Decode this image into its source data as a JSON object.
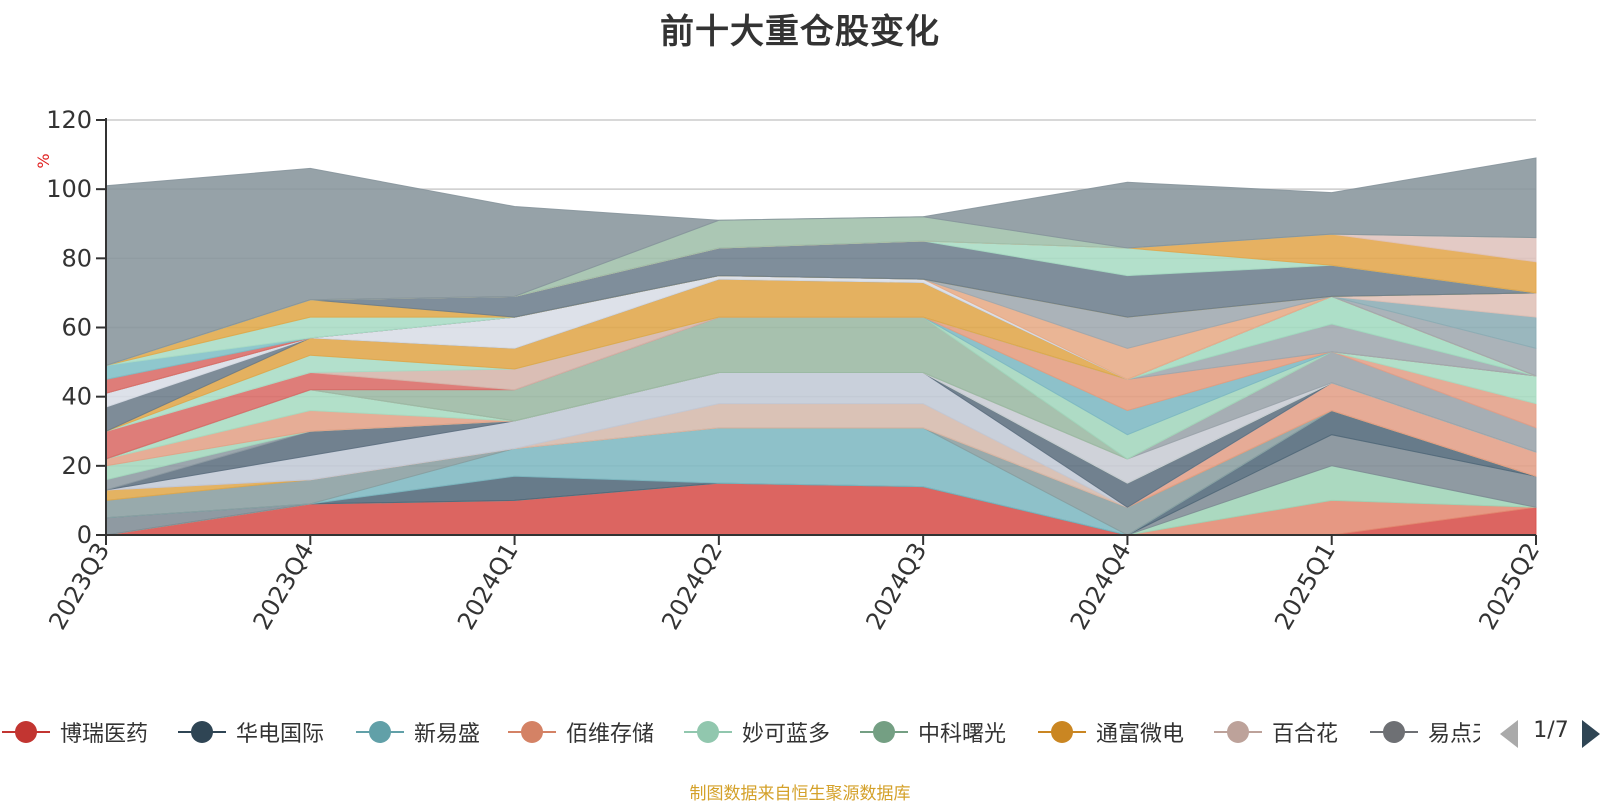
{
  "chart_data": {
    "type": "area",
    "stacked": true,
    "title": "前十大重仓股变化",
    "ylabel": "%",
    "ylim": [
      0,
      120
    ],
    "yticks": [
      0,
      20,
      40,
      60,
      80,
      100,
      120
    ],
    "grid": true,
    "legend_position": "bottom",
    "categories": [
      "2023Q3",
      "2023Q4",
      "2024Q1",
      "2024Q2",
      "2024Q3",
      "2024Q4",
      "2025Q1",
      "2025Q2"
    ],
    "series": [
      {
        "name": "博瑞医药",
        "color": "#d7504b",
        "values": [
          0,
          9,
          10,
          15,
          14,
          0,
          0,
          8
        ]
      },
      {
        "name": "",
        "color": "#e28a72",
        "values": [
          0,
          0,
          0,
          0,
          0,
          0,
          10,
          0
        ]
      },
      {
        "name": "",
        "color": "#9fd4b7",
        "values": [
          0,
          0,
          0,
          0,
          0,
          0,
          10,
          0
        ]
      },
      {
        "name": "",
        "color": "#7f8c95",
        "values": [
          5,
          0,
          0,
          0,
          0,
          0,
          9,
          9
        ]
      },
      {
        "name": "",
        "color": "#52697a",
        "values": [
          0,
          0,
          7,
          0,
          0,
          0,
          7,
          0
        ]
      },
      {
        "name": "新易盛",
        "color": "#7eb8c1",
        "values": [
          0,
          0,
          8,
          16,
          17,
          0,
          0,
          0
        ]
      },
      {
        "name": "",
        "color": "#8a9ea0",
        "values": [
          5,
          7,
          0,
          0,
          0,
          8,
          0,
          0
        ]
      },
      {
        "name": "通富微电",
        "color": "#e0a94c",
        "values": [
          3,
          0,
          0,
          0,
          0,
          0,
          0,
          0
        ]
      },
      {
        "name": "",
        "color": "#e39f88",
        "values": [
          0,
          0,
          0,
          0,
          0,
          0,
          8,
          7
        ]
      },
      {
        "name": "百合花",
        "color": "#d5b9ac",
        "values": [
          0,
          0,
          0,
          7,
          7,
          0,
          0,
          0
        ]
      },
      {
        "name": "",
        "color": "#c2c9d6",
        "values": [
          0,
          7,
          8,
          9,
          9,
          0,
          0,
          0
        ]
      },
      {
        "name": "",
        "color": "#5d6f80",
        "values": [
          0,
          7,
          0,
          0,
          0,
          7,
          0,
          0
        ]
      },
      {
        "name": "",
        "color": "#8d9aa2",
        "values": [
          3,
          0,
          0,
          0,
          0,
          0,
          0,
          0
        ]
      },
      {
        "name": "",
        "color": "#a3d7bd",
        "values": [
          4,
          0,
          0,
          0,
          0,
          0,
          0,
          0
        ]
      },
      {
        "name": "佰维存储",
        "color": "#e3a287",
        "values": [
          2,
          6,
          0,
          0,
          0,
          0,
          0,
          0
        ]
      },
      {
        "name": "",
        "color": "#a7dcc2",
        "values": [
          0,
          6,
          0,
          0,
          0,
          0,
          0,
          0
        ]
      },
      {
        "name": "",
        "color": "#c8ccd4",
        "values": [
          0,
          0,
          0,
          0,
          0,
          7,
          0,
          0
        ]
      },
      {
        "name": "",
        "color": "#9aa3aa",
        "values": [
          0,
          0,
          0,
          0,
          0,
          0,
          9,
          7
        ]
      },
      {
        "name": "",
        "color": "#e39f88",
        "values": [
          0,
          0,
          0,
          0,
          0,
          0,
          0,
          7
        ]
      },
      {
        "name": "",
        "color": "#a7dcc2",
        "values": [
          0,
          0,
          0,
          0,
          0,
          0,
          0,
          8
        ]
      },
      {
        "name": "中科曙光",
        "color": "#9bb8a3",
        "values": [
          0,
          0,
          9,
          16,
          16,
          0,
          0,
          0
        ]
      },
      {
        "name": "",
        "color": "#a3d6bd",
        "values": [
          0,
          0,
          0,
          0,
          0,
          7,
          0,
          0
        ]
      },
      {
        "name": "",
        "color": "#7db8c3",
        "values": [
          0,
          0,
          0,
          0,
          0,
          7,
          0,
          0
        ]
      },
      {
        "name": "",
        "color": "#e49d80",
        "values": [
          0,
          0,
          0,
          0,
          0,
          9,
          0,
          0
        ]
      },
      {
        "name": "",
        "color": "#9fa7ae",
        "values": [
          0,
          0,
          0,
          0,
          0,
          0,
          8,
          0
        ]
      },
      {
        "name": "",
        "color": "#a2dbc0",
        "values": [
          0,
          0,
          0,
          0,
          0,
          0,
          8,
          0
        ]
      },
      {
        "name": "",
        "color": "#d96b66",
        "values": [
          8,
          5,
          0,
          0,
          0,
          0,
          0,
          0
        ]
      },
      {
        "name": "",
        "color": "#d5b5ab",
        "values": [
          0,
          0,
          6,
          0,
          0,
          0,
          0,
          0
        ]
      },
      {
        "name": "",
        "color": "#a9dcc5",
        "values": [
          0,
          5,
          0,
          0,
          0,
          0,
          0,
          0
        ]
      },
      {
        "name": "",
        "color": "#e0a64a",
        "values": [
          0,
          5,
          6,
          11,
          10,
          0,
          0,
          0
        ]
      },
      {
        "name": "",
        "color": "#6c7c8a",
        "values": [
          7,
          0,
          0,
          0,
          0,
          0,
          0,
          0
        ]
      },
      {
        "name": "",
        "color": "#d8dde6",
        "values": [
          4,
          0,
          9,
          1,
          1,
          0,
          0,
          0
        ]
      },
      {
        "name": "",
        "color": "#e7ab86",
        "values": [
          0,
          0,
          0,
          0,
          0,
          9,
          0,
          0
        ]
      },
      {
        "name": "",
        "color": "#9fa8af",
        "values": [
          0,
          0,
          0,
          0,
          0,
          9,
          0,
          8
        ]
      },
      {
        "name": "",
        "color": "#8cadb5",
        "values": [
          0,
          0,
          0,
          0,
          0,
          0,
          0,
          9
        ]
      },
      {
        "name": "",
        "color": "#dfc0b6",
        "values": [
          0,
          0,
          0,
          0,
          0,
          0,
          0,
          7
        ]
      },
      {
        "name": "",
        "color": "#d96b66",
        "values": [
          4,
          0,
          0,
          0,
          0,
          0,
          0,
          0
        ]
      },
      {
        "name": "",
        "color": "#7fbfc6",
        "values": [
          4,
          0,
          0,
          0,
          0,
          0,
          0,
          0
        ]
      },
      {
        "name": "",
        "color": "#a9dcc5",
        "values": [
          0,
          6,
          0,
          0,
          0,
          0,
          0,
          0
        ]
      },
      {
        "name": "",
        "color": "#e0a84a",
        "values": [
          0,
          5,
          0,
          0,
          0,
          0,
          0,
          0
        ]
      },
      {
        "name": "",
        "color": "#6d7e8d",
        "values": [
          0,
          0,
          6,
          8,
          11,
          12,
          9,
          0
        ]
      },
      {
        "name": "",
        "color": "#a8dcc4",
        "values": [
          0,
          0,
          0,
          0,
          0,
          8,
          0,
          0
        ]
      },
      {
        "name": "",
        "color": "#e2a64c",
        "values": [
          0,
          0,
          0,
          0,
          0,
          0,
          9,
          9
        ]
      },
      {
        "name": "",
        "color": "#dfc3bd",
        "values": [
          0,
          0,
          0,
          0,
          0,
          0,
          0,
          7
        ]
      },
      {
        "name": "",
        "color": "#9fbfaa",
        "values": [
          0,
          0,
          0,
          8,
          7,
          0,
          0,
          0
        ]
      },
      {
        "name": "",
        "color": "#87959c",
        "values": [
          52,
          38,
          26,
          0,
          0,
          19,
          12,
          23
        ]
      }
    ]
  },
  "legend": {
    "items": [
      {
        "label": "博瑞医药",
        "color": "#c23531"
      },
      {
        "label": "华电国际",
        "color": "#2f4554"
      },
      {
        "label": "新易盛",
        "color": "#61a0a8"
      },
      {
        "label": "佰维存储",
        "color": "#d48265"
      },
      {
        "label": "妙可蓝多",
        "color": "#91c7ae"
      },
      {
        "label": "中科曙光",
        "color": "#749f83"
      },
      {
        "label": "通富微电",
        "color": "#ca8622"
      },
      {
        "label": "百合花",
        "color": "#bda29a"
      },
      {
        "label": "易点天下",
        "color": "#6e7074"
      }
    ],
    "page": "1/7"
  },
  "source": "制图数据来自恒生聚源数据库"
}
